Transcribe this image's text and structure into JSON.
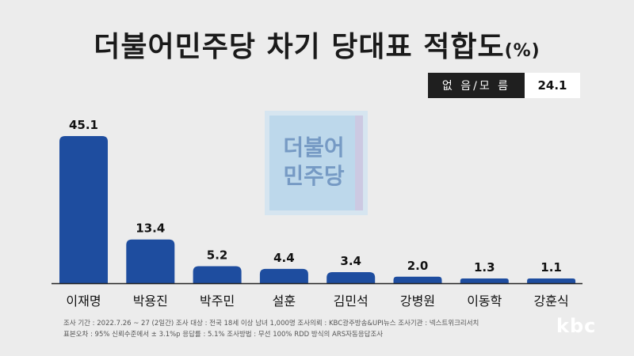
{
  "title": "더불어민주당 차기 당대표 적합도",
  "title_unit": "(%)",
  "no_response": {
    "label": "없 음/모 름",
    "value": "24.1"
  },
  "watermark": {
    "line1": "더불어",
    "line2": "민주당"
  },
  "footnote": {
    "line1": "조사 기간 : 2022.7.26 ~ 27 (2일간)   조사 대상 : 전국 18세 이상 남녀 1,000명  조사의뢰 : KBC광주방송&UPI뉴스   조사기관 : 넥스트위크리서치",
    "line2": "표본오차 : 95% 신뢰수준에서 ± 3.1%p    응답률 : 5.1%    조사방법 : 무선 100% RDD 방식의 ARS자동응답조사"
  },
  "brand": "kbc",
  "colors": {
    "bar": "#1e4d9f",
    "background": "#ececec"
  },
  "chart_data": {
    "type": "bar",
    "categories": [
      "이재명",
      "박용진",
      "박주민",
      "설훈",
      "김민석",
      "강병원",
      "이동학",
      "강훈식"
    ],
    "values": [
      45.1,
      13.4,
      5.2,
      4.4,
      3.4,
      2.0,
      1.3,
      1.1
    ],
    "value_labels": [
      "45.1",
      "13.4",
      "5.2",
      "4.4",
      "3.4",
      "2.0",
      "1.3",
      "1.1"
    ],
    "ylim": [
      0,
      50
    ],
    "grid": false,
    "legend": "none"
  }
}
